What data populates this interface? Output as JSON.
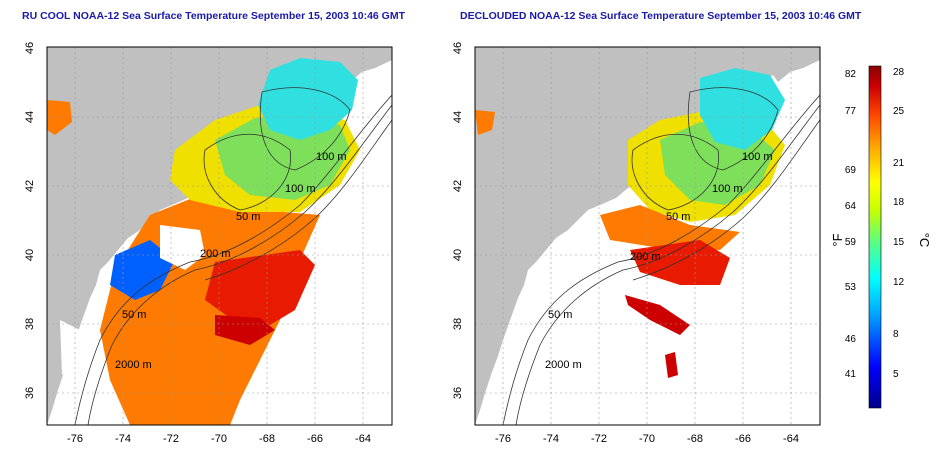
{
  "titles": {
    "left": "RU COOL NOAA-12 Sea Surface Temperature September 15, 2003 10:46 GMT",
    "right": "DECLOUDED NOAA-12 Sea Surface Temperature September 15, 2003 10:46 GMT"
  },
  "axes": {
    "lat_ticks": [
      "46",
      "44",
      "42",
      "40",
      "38",
      "36"
    ],
    "lon_ticks": [
      "-76",
      "-74",
      "-72",
      "-70",
      "-68",
      "-66",
      "-64"
    ]
  },
  "isobaths": {
    "left": [
      "100 m",
      "100 m",
      "50 m",
      "200 m",
      "50 m",
      "2000 m"
    ],
    "right": [
      "100 m",
      "100 m",
      "50 m",
      "200 m",
      "50 m",
      "2000 m"
    ]
  },
  "colorbar": {
    "fahrenheit_ticks": [
      "82",
      "77",
      "69",
      "64",
      "59",
      "53",
      "46",
      "41"
    ],
    "celsius_ticks": [
      "28",
      "25",
      "21",
      "18",
      "15",
      "12",
      "8",
      "5"
    ],
    "unit_f": "°F",
    "unit_c": "°C"
  },
  "colors": {
    "land": "#c0c0c0",
    "title": "#1a1aa8",
    "scale": [
      "#00008b",
      "#0000ff",
      "#00aaff",
      "#00ffff",
      "#55ff88",
      "#c8ff00",
      "#ffff00",
      "#ffaa00",
      "#ff4400",
      "#cc0000",
      "#8b0000"
    ]
  }
}
